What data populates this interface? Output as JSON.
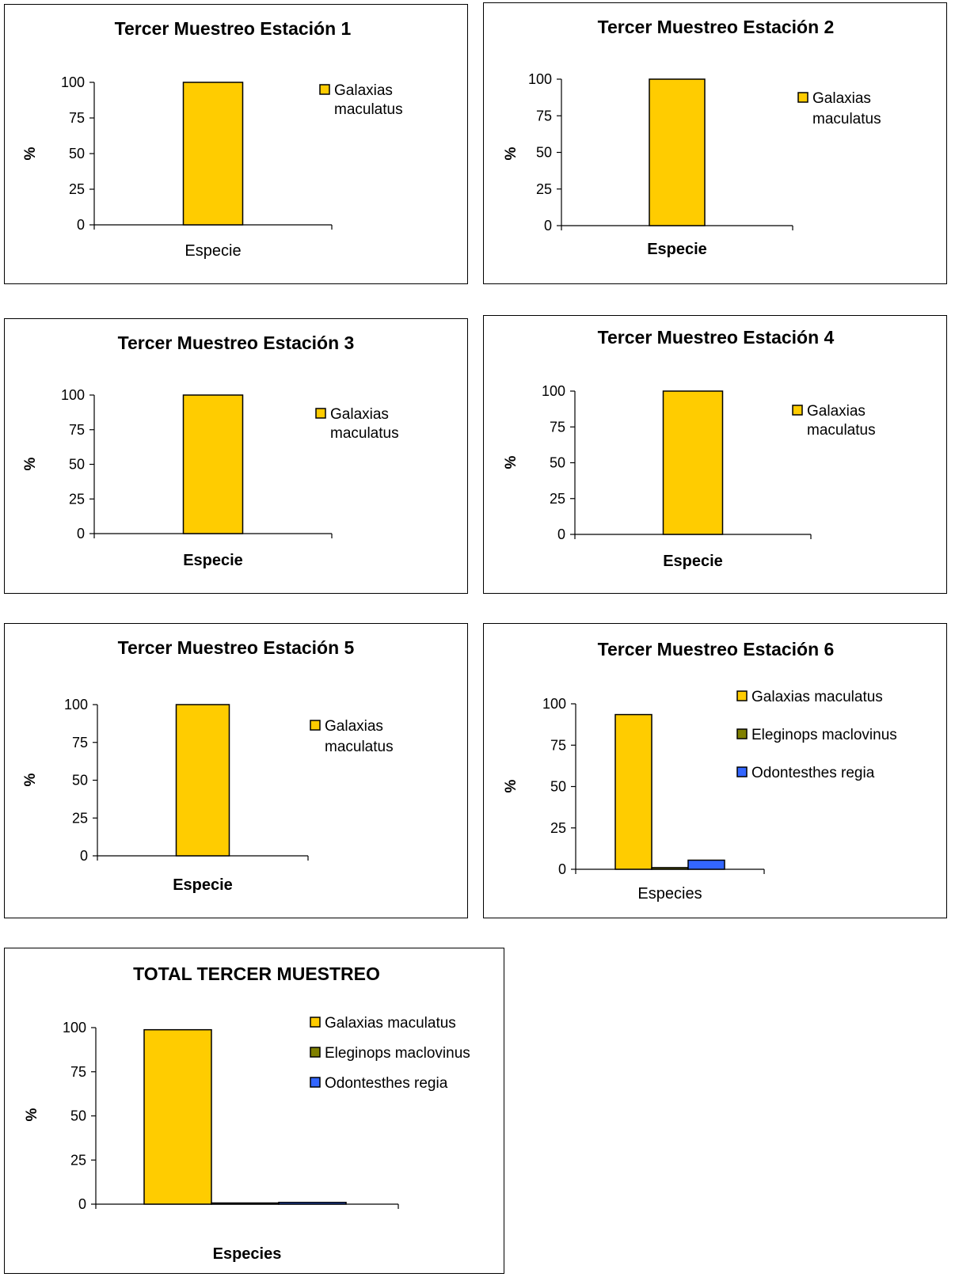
{
  "colors": {
    "Galaxias maculatus": "#FFCC00",
    "Eleginops maclovinus": "#808000",
    "Odontesthes regia": "#3366FF"
  },
  "chart_data": [
    {
      "type": "bar",
      "title": "Tercer Muestreo Estación 1",
      "ylabel": "%",
      "xlabel": "Especie",
      "xlabel_bold": false,
      "ylim": [
        0,
        100
      ],
      "yticks": [
        "0",
        "25",
        "50",
        "75",
        "100"
      ],
      "legend_position": "right",
      "series": [
        {
          "name": "Galaxias maculatus",
          "value": 100
        }
      ]
    },
    {
      "type": "bar",
      "title": "Tercer Muestreo Estación 2",
      "ylabel": "%",
      "xlabel": "Especie",
      "xlabel_bold": true,
      "ylim": [
        0,
        100
      ],
      "yticks": [
        "0",
        "25",
        "50",
        "75",
        "100"
      ],
      "legend_position": "right",
      "series": [
        {
          "name": "Galaxias maculatus",
          "value": 100
        }
      ]
    },
    {
      "type": "bar",
      "title": "Tercer Muestreo Estación 3",
      "ylabel": "%",
      "xlabel": "Especie",
      "xlabel_bold": true,
      "ylim": [
        0,
        100
      ],
      "yticks": [
        "0",
        "25",
        "50",
        "75",
        "100"
      ],
      "legend_position": "right",
      "series": [
        {
          "name": "Galaxias maculatus",
          "value": 100
        }
      ]
    },
    {
      "type": "bar",
      "title": "Tercer Muestreo Estación 4",
      "ylabel": "%",
      "xlabel": "Especie",
      "xlabel_bold": true,
      "ylim": [
        0,
        100
      ],
      "yticks": [
        "0",
        "25",
        "50",
        "75",
        "100"
      ],
      "legend_position": "right",
      "series": [
        {
          "name": "Galaxias maculatus",
          "value": 100
        }
      ]
    },
    {
      "type": "bar",
      "title": "Tercer Muestreo Estación 5",
      "ylabel": "%",
      "xlabel": "Especie",
      "xlabel_bold": true,
      "ylim": [
        0,
        100
      ],
      "yticks": [
        "0",
        "25",
        "50",
        "75",
        "100"
      ],
      "legend_position": "right",
      "series": [
        {
          "name": "Galaxias maculatus",
          "value": 100
        }
      ]
    },
    {
      "type": "bar",
      "title": "Tercer Muestreo Estación 6",
      "ylabel": "%",
      "xlabel": "Especies",
      "xlabel_bold": false,
      "ylim": [
        0,
        100
      ],
      "yticks": [
        "0",
        "25",
        "50",
        "75",
        "100"
      ],
      "legend_position": "right",
      "series": [
        {
          "name": "Galaxias maculatus",
          "value": 93.5
        },
        {
          "name": "Eleginops maclovinus",
          "value": 1
        },
        {
          "name": "Odontesthes regia",
          "value": 5.5
        }
      ]
    },
    {
      "type": "bar",
      "title": "TOTAL TERCER MUESTREO",
      "ylabel": "%",
      "xlabel": "Especies",
      "xlabel_bold": true,
      "ylim": [
        0,
        100
      ],
      "yticks": [
        "0",
        "25",
        "50",
        "75",
        "100"
      ],
      "legend_position": "right",
      "series": [
        {
          "name": "Galaxias maculatus",
          "value": 98.8
        },
        {
          "name": "Eleginops maclovinus",
          "value": 0.2
        },
        {
          "name": "Odontesthes regia",
          "value": 1
        }
      ]
    }
  ]
}
